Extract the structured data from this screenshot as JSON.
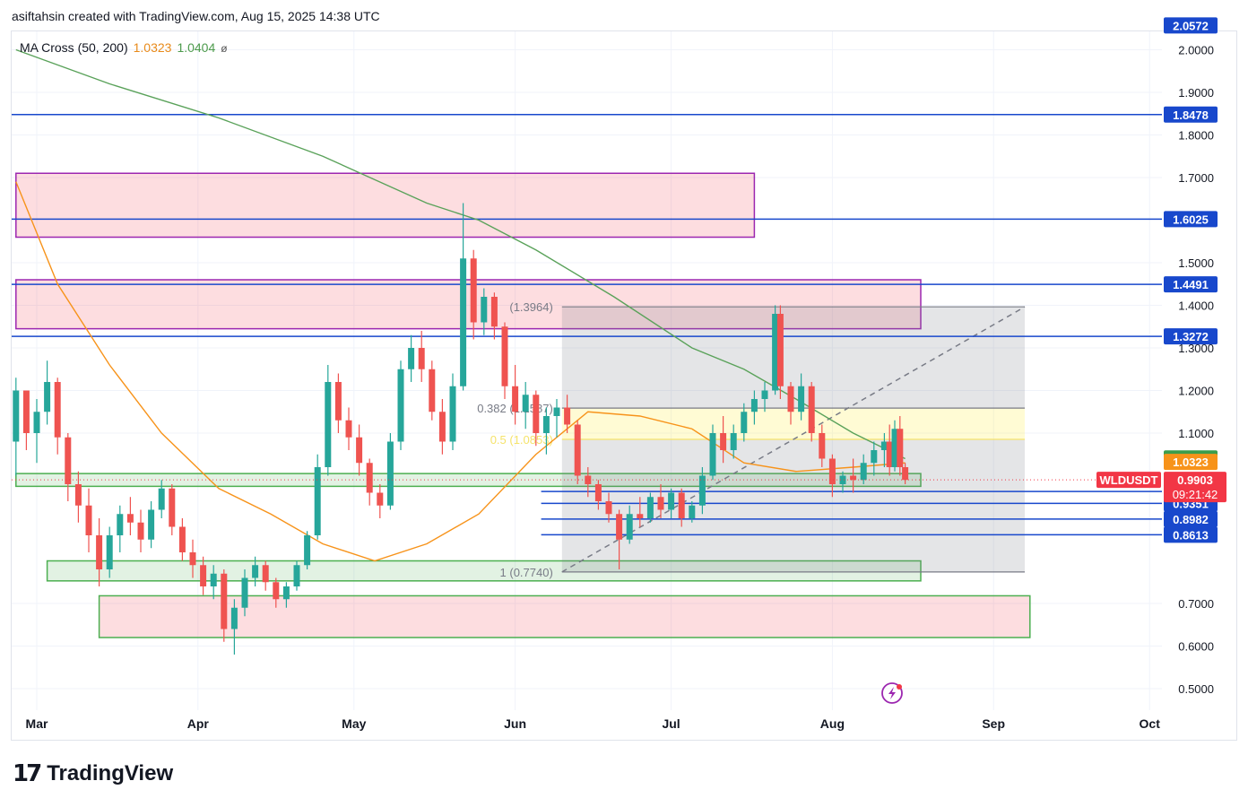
{
  "header": {
    "byline": "asiftahsin created with TradingView.com, Aug 15, 2025 14:38 UTC"
  },
  "indicator": {
    "label": "MA Cross (50, 200)",
    "ma50_value": "1.0323",
    "ma200_value": "1.0404",
    "eye_icon": "ø"
  },
  "brand": {
    "logo_mark": "17",
    "name": "TradingView"
  },
  "colors": {
    "up": "#26a69a",
    "down": "#ef5350",
    "ma50": "#f7931a",
    "ma200": "#5aa25a",
    "level_line": "#1848cc",
    "axis_badge": "#1848cc",
    "price_badge": "#f23645"
  },
  "chart_data": {
    "type": "candlestick",
    "symbol": "WLDUSDT",
    "x_axis": {
      "labels": [
        "Mar",
        "Apr",
        "May",
        "Jun",
        "Jul",
        "Aug",
        "Sep",
        "Oct"
      ]
    },
    "y_axis": {
      "ticks": [
        "0.5000",
        "0.6000",
        "0.7000",
        "1.1000",
        "1.2000",
        "1.3000",
        "1.4000",
        "1.5000",
        "1.7000",
        "1.8000",
        "1.9000",
        "2.0000"
      ],
      "range": [
        0.48,
        2.07
      ]
    },
    "horizontal_levels": [
      "1.8478",
      "1.6025",
      "1.4491",
      "1.3272",
      "0.9630",
      "0.9351",
      "0.8982",
      "0.8613"
    ],
    "axis_badges": [
      "2.0572",
      "1.0404",
      "1.0323"
    ],
    "last_price": {
      "symbol": "WLDUSDT",
      "value": "0.9903",
      "countdown": "09:21:42"
    },
    "fibonacci": {
      "top_label": "(1.3964)",
      "mid_label": "0.382 (1.1587)",
      "half_label": "0.5 (1.0853)",
      "bottom_label": "1 (0.7740)",
      "top": 1.3964,
      "mid": 1.1587,
      "half": 1.0853,
      "bottom": 0.774,
      "from_date": "2025-06-10",
      "to_date": "2025-09-07"
    },
    "zones": [
      {
        "kind": "resistance",
        "low": 1.56,
        "high": 1.71,
        "from_date": "2025-02-25",
        "to_date": "2025-07-17"
      },
      {
        "kind": "resistance",
        "low": 1.345,
        "high": 1.46,
        "from_date": "2025-02-25",
        "to_date": "2025-08-18"
      },
      {
        "kind": "support",
        "low": 0.975,
        "high": 1.005,
        "from_date": "2025-02-25",
        "to_date": "2025-08-18"
      },
      {
        "kind": "support",
        "low": 0.753,
        "high": 0.8,
        "from_date": "2025-03-03",
        "to_date": "2025-08-18"
      },
      {
        "kind": "demand",
        "low": 0.62,
        "high": 0.718,
        "from_date": "2025-03-13",
        "to_date": "2025-09-08"
      }
    ],
    "ma50": [
      [
        "2025-02-25",
        1.69
      ],
      [
        "2025-03-05",
        1.45
      ],
      [
        "2025-03-15",
        1.26
      ],
      [
        "2025-03-25",
        1.1
      ],
      [
        "2025-04-05",
        0.97
      ],
      [
        "2025-04-15",
        0.91
      ],
      [
        "2025-04-25",
        0.84
      ],
      [
        "2025-05-05",
        0.8
      ],
      [
        "2025-05-15",
        0.84
      ],
      [
        "2025-05-25",
        0.91
      ],
      [
        "2025-06-05",
        1.05
      ],
      [
        "2025-06-15",
        1.15
      ],
      [
        "2025-06-25",
        1.14
      ],
      [
        "2025-07-05",
        1.11
      ],
      [
        "2025-07-15",
        1.03
      ],
      [
        "2025-07-25",
        1.01
      ],
      [
        "2025-08-05",
        1.02
      ],
      [
        "2025-08-15",
        1.03
      ]
    ],
    "ma200": [
      [
        "2025-02-25",
        2.0
      ],
      [
        "2025-03-15",
        1.92
      ],
      [
        "2025-04-05",
        1.84
      ],
      [
        "2025-04-25",
        1.75
      ],
      [
        "2025-05-15",
        1.64
      ],
      [
        "2025-05-25",
        1.6
      ],
      [
        "2025-06-05",
        1.53
      ],
      [
        "2025-06-20",
        1.42
      ],
      [
        "2025-07-05",
        1.3
      ],
      [
        "2025-07-15",
        1.25
      ],
      [
        "2025-07-25",
        1.18
      ],
      [
        "2025-08-05",
        1.1
      ],
      [
        "2025-08-15",
        1.04
      ]
    ],
    "candles": [
      [
        "2025-02-25",
        1.08,
        1.23,
        1.0,
        1.2
      ],
      [
        "2025-02-27",
        1.2,
        1.2,
        1.06,
        1.1
      ],
      [
        "2025-03-01",
        1.1,
        1.18,
        1.03,
        1.15
      ],
      [
        "2025-03-03",
        1.15,
        1.27,
        1.12,
        1.22
      ],
      [
        "2025-03-05",
        1.22,
        1.23,
        1.05,
        1.09
      ],
      [
        "2025-03-07",
        1.09,
        1.1,
        0.94,
        0.98
      ],
      [
        "2025-03-09",
        0.98,
        1.01,
        0.89,
        0.93
      ],
      [
        "2025-03-11",
        0.93,
        0.97,
        0.82,
        0.86
      ],
      [
        "2025-03-13",
        0.86,
        0.9,
        0.74,
        0.78
      ],
      [
        "2025-03-15",
        0.78,
        0.88,
        0.76,
        0.86
      ],
      [
        "2025-03-17",
        0.86,
        0.93,
        0.82,
        0.91
      ],
      [
        "2025-03-19",
        0.91,
        0.95,
        0.86,
        0.89
      ],
      [
        "2025-03-21",
        0.89,
        0.92,
        0.82,
        0.85
      ],
      [
        "2025-03-23",
        0.85,
        0.94,
        0.83,
        0.92
      ],
      [
        "2025-03-25",
        0.92,
        0.99,
        0.9,
        0.97
      ],
      [
        "2025-03-27",
        0.97,
        0.98,
        0.86,
        0.88
      ],
      [
        "2025-03-29",
        0.88,
        0.9,
        0.8,
        0.82
      ],
      [
        "2025-03-31",
        0.82,
        0.85,
        0.76,
        0.79
      ],
      [
        "2025-04-02",
        0.79,
        0.81,
        0.72,
        0.74
      ],
      [
        "2025-04-04",
        0.74,
        0.79,
        0.71,
        0.77
      ],
      [
        "2025-04-06",
        0.77,
        0.78,
        0.61,
        0.64
      ],
      [
        "2025-04-08",
        0.64,
        0.71,
        0.58,
        0.69
      ],
      [
        "2025-04-10",
        0.69,
        0.78,
        0.67,
        0.76
      ],
      [
        "2025-04-12",
        0.76,
        0.81,
        0.74,
        0.79
      ],
      [
        "2025-04-14",
        0.79,
        0.8,
        0.73,
        0.75
      ],
      [
        "2025-04-16",
        0.75,
        0.76,
        0.69,
        0.71
      ],
      [
        "2025-04-18",
        0.71,
        0.75,
        0.69,
        0.74
      ],
      [
        "2025-04-20",
        0.74,
        0.8,
        0.73,
        0.79
      ],
      [
        "2025-04-22",
        0.79,
        0.87,
        0.78,
        0.86
      ],
      [
        "2025-04-24",
        0.86,
        1.05,
        0.85,
        1.02
      ],
      [
        "2025-04-26",
        1.02,
        1.26,
        1.0,
        1.22
      ],
      [
        "2025-04-28",
        1.22,
        1.24,
        1.1,
        1.13
      ],
      [
        "2025-04-30",
        1.13,
        1.16,
        1.06,
        1.09
      ],
      [
        "2025-05-02",
        1.09,
        1.12,
        1.0,
        1.03
      ],
      [
        "2025-05-04",
        1.03,
        1.04,
        0.93,
        0.96
      ],
      [
        "2025-05-06",
        0.96,
        0.98,
        0.9,
        0.93
      ],
      [
        "2025-05-08",
        0.93,
        1.1,
        0.92,
        1.08
      ],
      [
        "2025-05-10",
        1.08,
        1.27,
        1.06,
        1.25
      ],
      [
        "2025-05-12",
        1.25,
        1.33,
        1.22,
        1.3
      ],
      [
        "2025-05-14",
        1.3,
        1.34,
        1.22,
        1.25
      ],
      [
        "2025-05-16",
        1.25,
        1.27,
        1.13,
        1.15
      ],
      [
        "2025-05-18",
        1.15,
        1.18,
        1.05,
        1.08
      ],
      [
        "2025-05-20",
        1.08,
        1.24,
        1.06,
        1.21
      ],
      [
        "2025-05-22",
        1.21,
        1.64,
        1.2,
        1.51
      ],
      [
        "2025-05-24",
        1.51,
        1.53,
        1.32,
        1.36
      ],
      [
        "2025-05-26",
        1.36,
        1.44,
        1.33,
        1.42
      ],
      [
        "2025-05-28",
        1.42,
        1.43,
        1.32,
        1.35
      ],
      [
        "2025-05-30",
        1.35,
        1.36,
        1.18,
        1.21
      ],
      [
        "2025-06-01",
        1.21,
        1.26,
        1.12,
        1.15
      ],
      [
        "2025-06-03",
        1.15,
        1.22,
        1.11,
        1.19
      ],
      [
        "2025-06-05",
        1.19,
        1.2,
        1.07,
        1.1
      ],
      [
        "2025-06-07",
        1.1,
        1.16,
        1.05,
        1.14
      ],
      [
        "2025-06-09",
        1.14,
        1.18,
        1.09,
        1.16
      ],
      [
        "2025-06-11",
        1.16,
        1.19,
        1.1,
        1.12
      ],
      [
        "2025-06-13",
        1.12,
        1.13,
        0.98,
        1.0
      ],
      [
        "2025-06-15",
        1.0,
        1.02,
        0.95,
        0.98
      ],
      [
        "2025-06-17",
        0.98,
        0.99,
        0.92,
        0.94
      ],
      [
        "2025-06-19",
        0.94,
        0.96,
        0.89,
        0.91
      ],
      [
        "2025-06-21",
        0.91,
        0.92,
        0.78,
        0.85
      ],
      [
        "2025-06-23",
        0.85,
        0.93,
        0.84,
        0.91
      ],
      [
        "2025-06-25",
        0.91,
        0.95,
        0.88,
        0.9
      ],
      [
        "2025-06-27",
        0.9,
        0.96,
        0.89,
        0.95
      ],
      [
        "2025-06-29",
        0.95,
        0.98,
        0.9,
        0.92
      ],
      [
        "2025-07-01",
        0.92,
        0.97,
        0.9,
        0.96
      ],
      [
        "2025-07-03",
        0.96,
        0.97,
        0.88,
        0.9
      ],
      [
        "2025-07-05",
        0.9,
        0.94,
        0.89,
        0.93
      ],
      [
        "2025-07-07",
        0.93,
        1.02,
        0.91,
        1.0
      ],
      [
        "2025-07-09",
        1.0,
        1.12,
        0.99,
        1.1
      ],
      [
        "2025-07-11",
        1.1,
        1.14,
        1.03,
        1.06
      ],
      [
        "2025-07-13",
        1.06,
        1.12,
        1.04,
        1.1
      ],
      [
        "2025-07-15",
        1.1,
        1.17,
        1.08,
        1.15
      ],
      [
        "2025-07-17",
        1.15,
        1.2,
        1.12,
        1.18
      ],
      [
        "2025-07-19",
        1.18,
        1.22,
        1.15,
        1.2
      ],
      [
        "2025-07-21",
        1.2,
        1.4,
        1.19,
        1.38
      ],
      [
        "2025-07-22",
        1.38,
        1.4,
        1.18,
        1.21
      ],
      [
        "2025-07-24",
        1.21,
        1.22,
        1.12,
        1.15
      ],
      [
        "2025-07-26",
        1.15,
        1.24,
        1.13,
        1.21
      ],
      [
        "2025-07-28",
        1.21,
        1.22,
        1.08,
        1.1
      ],
      [
        "2025-07-30",
        1.1,
        1.12,
        1.02,
        1.04
      ],
      [
        "2025-08-01",
        1.04,
        1.05,
        0.95,
        0.98
      ],
      [
        "2025-08-03",
        0.98,
        1.01,
        0.96,
        1.0
      ],
      [
        "2025-08-05",
        1.0,
        1.04,
        0.96,
        0.99
      ],
      [
        "2025-08-07",
        0.99,
        1.05,
        0.98,
        1.03
      ],
      [
        "2025-08-09",
        1.03,
        1.08,
        1.0,
        1.06
      ],
      [
        "2025-08-11",
        1.06,
        1.1,
        1.02,
        1.08
      ],
      [
        "2025-08-12",
        1.08,
        1.12,
        1.0,
        1.02
      ],
      [
        "2025-08-13",
        1.02,
        1.13,
        1.01,
        1.11
      ],
      [
        "2025-08-14",
        1.11,
        1.14,
        1.0,
        1.02
      ],
      [
        "2025-08-15",
        1.02,
        1.03,
        0.98,
        0.99
      ]
    ]
  }
}
